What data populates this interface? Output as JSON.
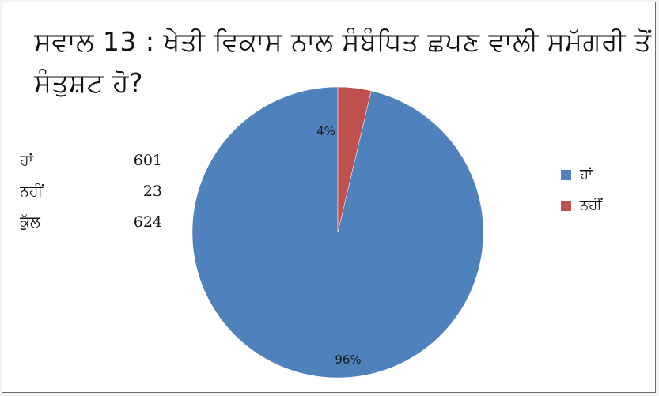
{
  "title": "ਸਵਾਲ 13 : ਖੇਤੀ ਵਿਕਾਸ ਨਾਲ ਸੰਬੰਧਿਤ ਛਪਣ ਵਾਲੀ ਸਮੱਗਰੀ ਤੋਂ ਸੰਤੁਸ਼ਟ ਹੋ?",
  "stats": [
    {
      "label": "ਹਾਂ",
      "value": "601"
    },
    {
      "label": "ਨਹੀਂ",
      "value": "23"
    },
    {
      "label": "ਕੁੱਲ",
      "value": "624"
    }
  ],
  "colors": {
    "yes": "#4f81bd",
    "no": "#c0504d"
  },
  "chart_data": {
    "type": "pie",
    "title": "ਸਵਾਲ 13 : ਖੇਤੀ ਵਿਕਾਸ ਨਾਲ ਸੰਬੰਧਿਤ ਛਪਣ ਵਾਲੀ ਸਮੱਗਰੀ ਤੋਂ ਸੰਤੁਸ਼ਟ ਹੋ?",
    "categories": [
      "ਹਾਂ",
      "ਨਹੀਂ"
    ],
    "values": [
      601,
      23
    ],
    "percent_labels": [
      "96%",
      "4%"
    ],
    "colors": [
      "#4f81bd",
      "#c0504d"
    ],
    "legend": "right"
  }
}
